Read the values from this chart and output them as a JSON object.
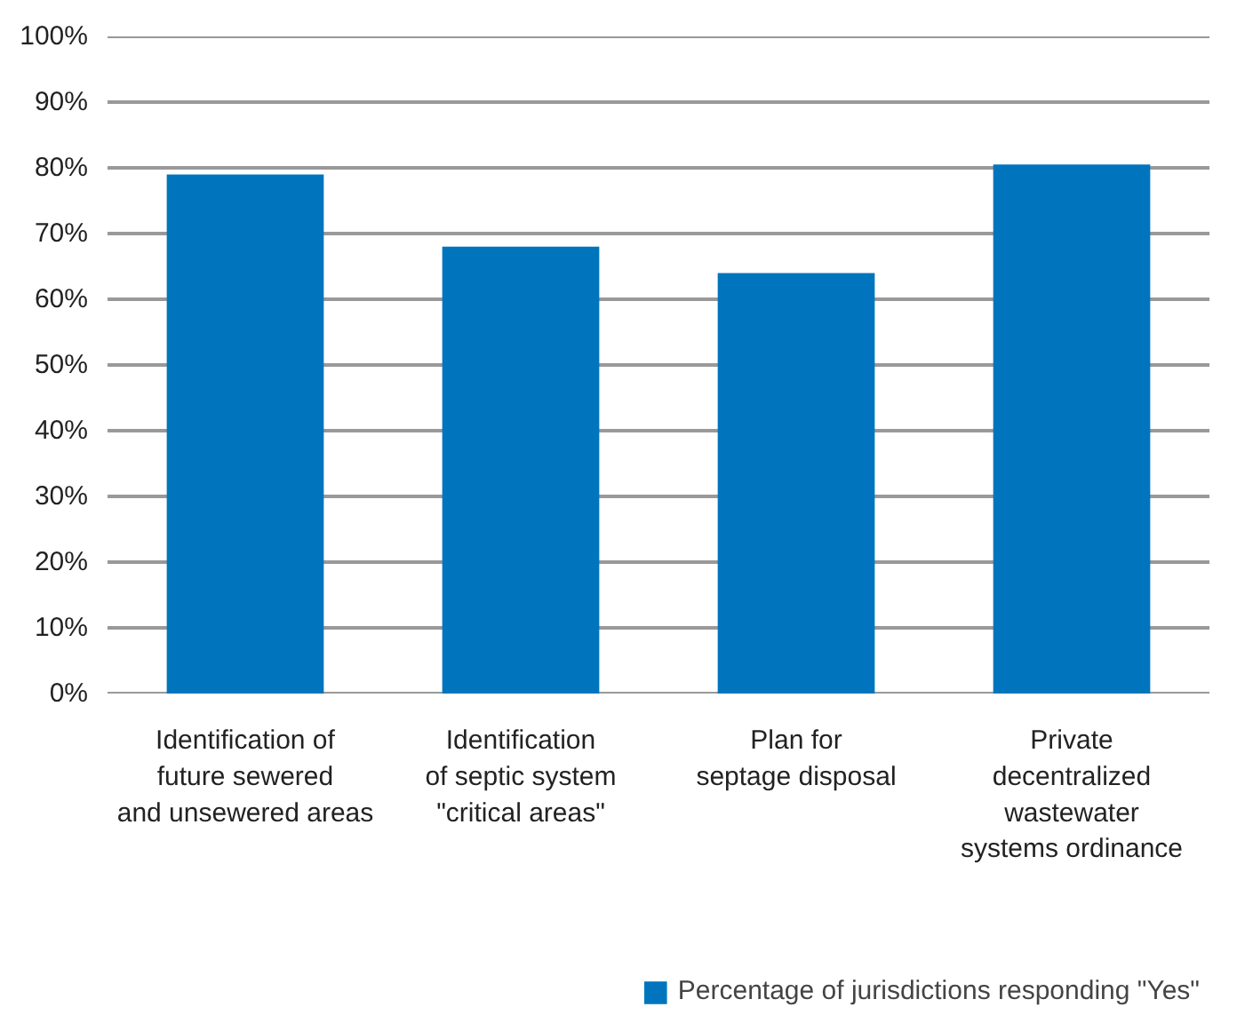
{
  "chart_data": {
    "type": "bar",
    "categories": [
      "Identification of\nfuture sewered\nand unsewered areas",
      "Identification\nof septic system\n\"critical areas\"",
      "Plan for\nseptage disposal",
      "Private\ndecentralized\nwastewater\nsystems ordinance"
    ],
    "series": [
      {
        "name": "Percentage of jurisdictions responding \"Yes\"",
        "color": "#0075bd",
        "values": [
          79,
          68,
          64,
          80.5
        ]
      }
    ],
    "ylim": [
      0,
      100
    ],
    "yticks": [
      {
        "value": 0,
        "label": "0%"
      },
      {
        "value": 10,
        "label": "10%"
      },
      {
        "value": 20,
        "label": "20%"
      },
      {
        "value": 30,
        "label": "30%"
      },
      {
        "value": 40,
        "label": "40%"
      },
      {
        "value": 50,
        "label": "50%"
      },
      {
        "value": 60,
        "label": "60%"
      },
      {
        "value": 70,
        "label": "70%"
      },
      {
        "value": 80,
        "label": "80%"
      },
      {
        "value": 90,
        "label": "90%"
      },
      {
        "value": 100,
        "label": "100%"
      }
    ],
    "grid": "y",
    "legend": "bottom right"
  }
}
